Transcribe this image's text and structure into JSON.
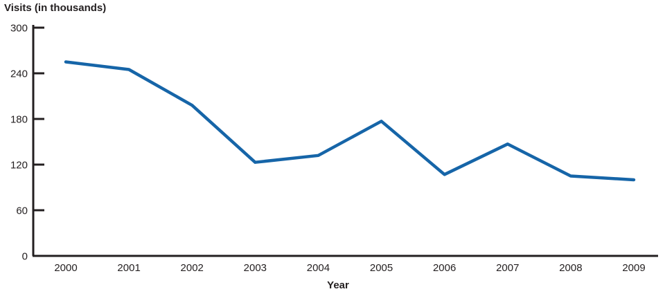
{
  "chart_data": {
    "type": "line",
    "title": "Visits (in thousands)",
    "xlabel": "Year",
    "ylabel": "Visits (in thousands)",
    "categories": [
      "2000",
      "2001",
      "2002",
      "2003",
      "2004",
      "2005",
      "2006",
      "2007",
      "2008",
      "2009"
    ],
    "values": [
      255,
      245,
      198,
      123,
      132,
      177,
      107,
      147,
      105,
      100
    ],
    "ylim": [
      0,
      300
    ],
    "yticks": [
      0,
      60,
      120,
      180,
      240,
      300
    ],
    "grid": false,
    "legend": false,
    "line_color": "#1665a8",
    "axis_color": "#231f20"
  }
}
